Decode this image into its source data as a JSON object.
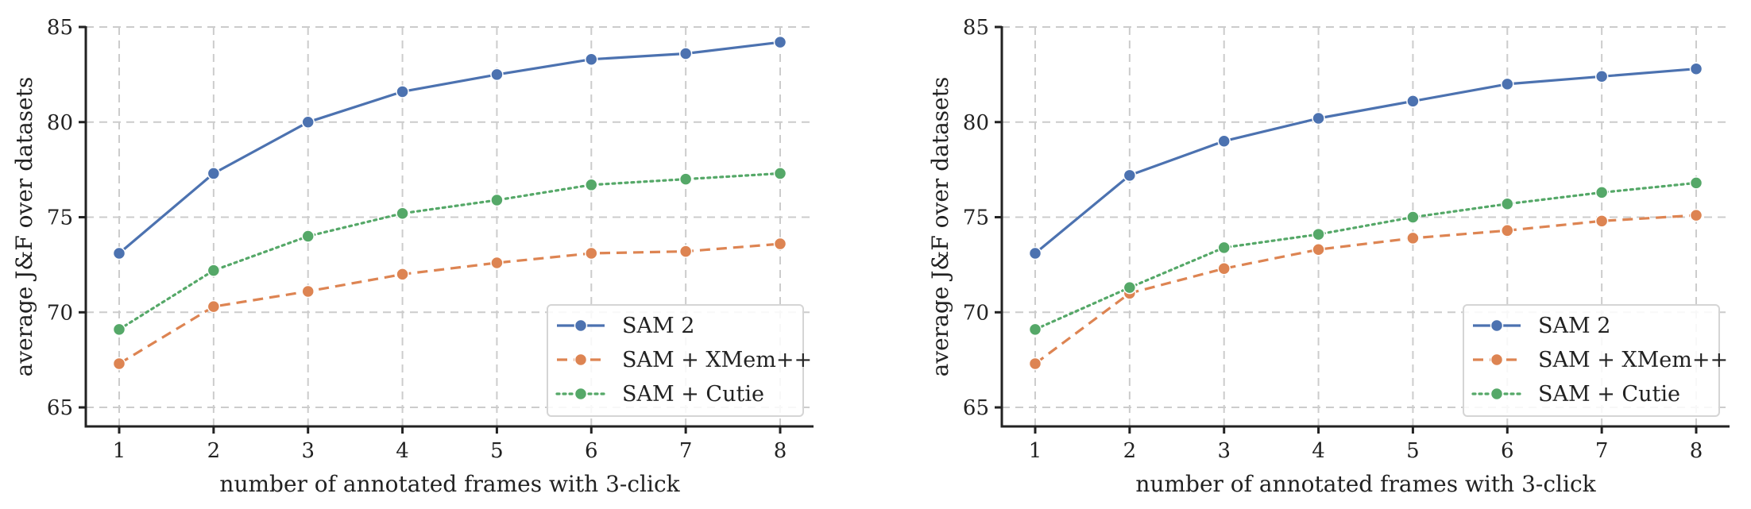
{
  "chart_data": [
    {
      "type": "line",
      "xlabel": "number of annotated frames with 3-click",
      "ylabel": "average J&F over datasets",
      "x": [
        1,
        2,
        3,
        4,
        5,
        6,
        7,
        8
      ],
      "ylim": [
        64,
        85
      ],
      "yticks": [
        65,
        70,
        75,
        80,
        85
      ],
      "grid": true,
      "legend_position": "lower-right",
      "series": [
        {
          "name": "SAM 2",
          "color": "#4c72b0",
          "style": "solid",
          "values": [
            73.1,
            77.3,
            80.0,
            81.6,
            82.5,
            83.3,
            83.6,
            84.2
          ]
        },
        {
          "name": "SAM + XMem++",
          "color": "#dd8452",
          "style": "dashed",
          "values": [
            67.3,
            70.3,
            71.1,
            72.0,
            72.6,
            73.1,
            73.2,
            73.6
          ]
        },
        {
          "name": "SAM + Cutie",
          "color": "#55a868",
          "style": "dotted",
          "values": [
            69.1,
            72.2,
            74.0,
            75.2,
            75.9,
            76.7,
            77.0,
            77.3
          ]
        }
      ]
    },
    {
      "type": "line",
      "xlabel": "number of annotated frames with 3-click",
      "ylabel": "average J&F over datasets",
      "x": [
        1,
        2,
        3,
        4,
        5,
        6,
        7,
        8
      ],
      "ylim": [
        64,
        85
      ],
      "yticks": [
        65,
        70,
        75,
        80,
        85
      ],
      "grid": true,
      "legend_position": "lower-right",
      "series": [
        {
          "name": "SAM 2",
          "color": "#4c72b0",
          "style": "solid",
          "values": [
            73.1,
            77.2,
            79.0,
            80.2,
            81.1,
            82.0,
            82.4,
            82.8
          ]
        },
        {
          "name": "SAM + XMem++",
          "color": "#dd8452",
          "style": "dashed",
          "values": [
            67.3,
            71.0,
            72.3,
            73.3,
            73.9,
            74.3,
            74.8,
            75.1
          ]
        },
        {
          "name": "SAM + Cutie",
          "color": "#55a868",
          "style": "dotted",
          "values": [
            69.1,
            71.3,
            73.4,
            74.1,
            75.0,
            75.7,
            76.3,
            76.8
          ]
        }
      ]
    }
  ]
}
